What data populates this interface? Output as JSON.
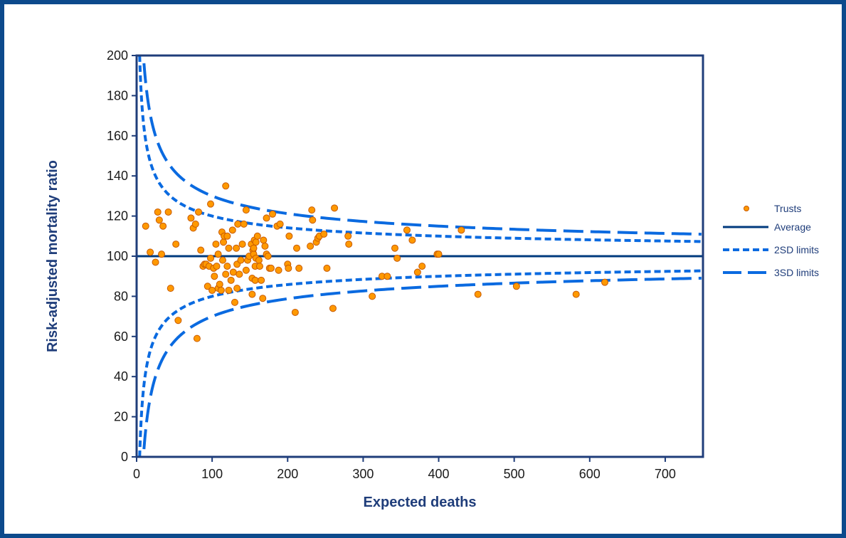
{
  "chart_data": {
    "type": "scatter",
    "xlabel": "Expected deaths",
    "ylabel": "Risk-adjusted mortality ratio",
    "xlim": [
      0,
      750
    ],
    "ylim": [
      0,
      200
    ],
    "xticks": [
      0,
      100,
      200,
      300,
      400,
      500,
      600,
      700
    ],
    "yticks": [
      0,
      20,
      40,
      60,
      80,
      100,
      120,
      140,
      160,
      180,
      200
    ],
    "grid": false,
    "legend_position": "right",
    "colors": {
      "frame": "#0d4a8c",
      "axes": "#1f3d7a",
      "average": "#003a7d",
      "limits": "#0a6ae0",
      "point_fill": "#ff9900",
      "point_edge": "#c85a00"
    },
    "series": [
      {
        "name": "Trusts",
        "kind": "points",
        "points": [
          [
            12,
            115
          ],
          [
            18,
            102
          ],
          [
            25,
            97
          ],
          [
            28,
            122
          ],
          [
            30,
            118
          ],
          [
            33,
            101
          ],
          [
            35,
            115
          ],
          [
            42,
            122
          ],
          [
            45,
            84
          ],
          [
            52,
            106
          ],
          [
            55,
            68
          ],
          [
            72,
            119
          ],
          [
            75,
            114
          ],
          [
            78,
            116
          ],
          [
            80,
            59
          ],
          [
            82,
            122
          ],
          [
            85,
            103
          ],
          [
            88,
            95
          ],
          [
            90,
            96
          ],
          [
            92,
            96
          ],
          [
            94,
            85
          ],
          [
            96,
            95
          ],
          [
            98,
            126
          ],
          [
            98,
            99
          ],
          [
            100,
            83
          ],
          [
            102,
            94
          ],
          [
            103,
            90
          ],
          [
            105,
            106
          ],
          [
            106,
            95
          ],
          [
            108,
            84
          ],
          [
            108,
            101
          ],
          [
            110,
            86
          ],
          [
            112,
            83
          ],
          [
            113,
            112
          ],
          [
            114,
            98
          ],
          [
            115,
            107
          ],
          [
            116,
            110
          ],
          [
            118,
            91
          ],
          [
            118,
            135
          ],
          [
            120,
            110
          ],
          [
            120,
            95
          ],
          [
            122,
            104
          ],
          [
            122,
            83
          ],
          [
            125,
            88
          ],
          [
            127,
            113
          ],
          [
            128,
            92
          ],
          [
            130,
            77
          ],
          [
            132,
            104
          ],
          [
            133,
            84
          ],
          [
            133,
            96
          ],
          [
            134,
            116
          ],
          [
            136,
            91
          ],
          [
            138,
            98
          ],
          [
            140,
            106
          ],
          [
            142,
            116
          ],
          [
            145,
            123
          ],
          [
            145,
            93
          ],
          [
            147,
            98
          ],
          [
            149,
            100
          ],
          [
            152,
            106
          ],
          [
            153,
            81
          ],
          [
            153,
            89
          ],
          [
            154,
            103
          ],
          [
            155,
            101
          ],
          [
            155,
            104
          ],
          [
            156,
            108
          ],
          [
            157,
            95
          ],
          [
            157,
            88
          ],
          [
            158,
            107
          ],
          [
            158,
            99
          ],
          [
            160,
            110
          ],
          [
            162,
            98
          ],
          [
            163,
            95
          ],
          [
            165,
            88
          ],
          [
            167,
            79
          ],
          [
            168,
            108
          ],
          [
            170,
            105
          ],
          [
            172,
            101
          ],
          [
            172,
            119
          ],
          [
            174,
            100
          ],
          [
            176,
            94
          ],
          [
            178,
            94
          ],
          [
            180,
            121
          ],
          [
            186,
            115
          ],
          [
            188,
            93
          ],
          [
            190,
            116
          ],
          [
            200,
            96
          ],
          [
            201,
            94
          ],
          [
            202,
            110
          ],
          [
            210,
            72
          ],
          [
            212,
            104
          ],
          [
            215,
            94
          ],
          [
            230,
            105
          ],
          [
            232,
            123
          ],
          [
            233,
            118
          ],
          [
            238,
            107
          ],
          [
            240,
            109
          ],
          [
            242,
            110
          ],
          [
            248,
            111
          ],
          [
            252,
            94
          ],
          [
            260,
            74
          ],
          [
            262,
            124
          ],
          [
            280,
            110
          ],
          [
            281,
            106
          ],
          [
            312,
            80
          ],
          [
            325,
            90
          ],
          [
            332,
            90
          ],
          [
            342,
            104
          ],
          [
            345,
            99
          ],
          [
            358,
            113
          ],
          [
            365,
            108
          ],
          [
            372,
            92
          ],
          [
            378,
            95
          ],
          [
            398,
            101
          ],
          [
            400,
            101
          ],
          [
            430,
            113
          ],
          [
            452,
            81
          ],
          [
            503,
            85
          ],
          [
            582,
            81
          ],
          [
            620,
            87
          ]
        ]
      },
      {
        "name": "Average",
        "kind": "line",
        "y": 100
      },
      {
        "name": "2SD limits",
        "kind": "funnel",
        "z": 2
      },
      {
        "name": "3SD limits",
        "kind": "funnel",
        "z": 3
      }
    ]
  }
}
